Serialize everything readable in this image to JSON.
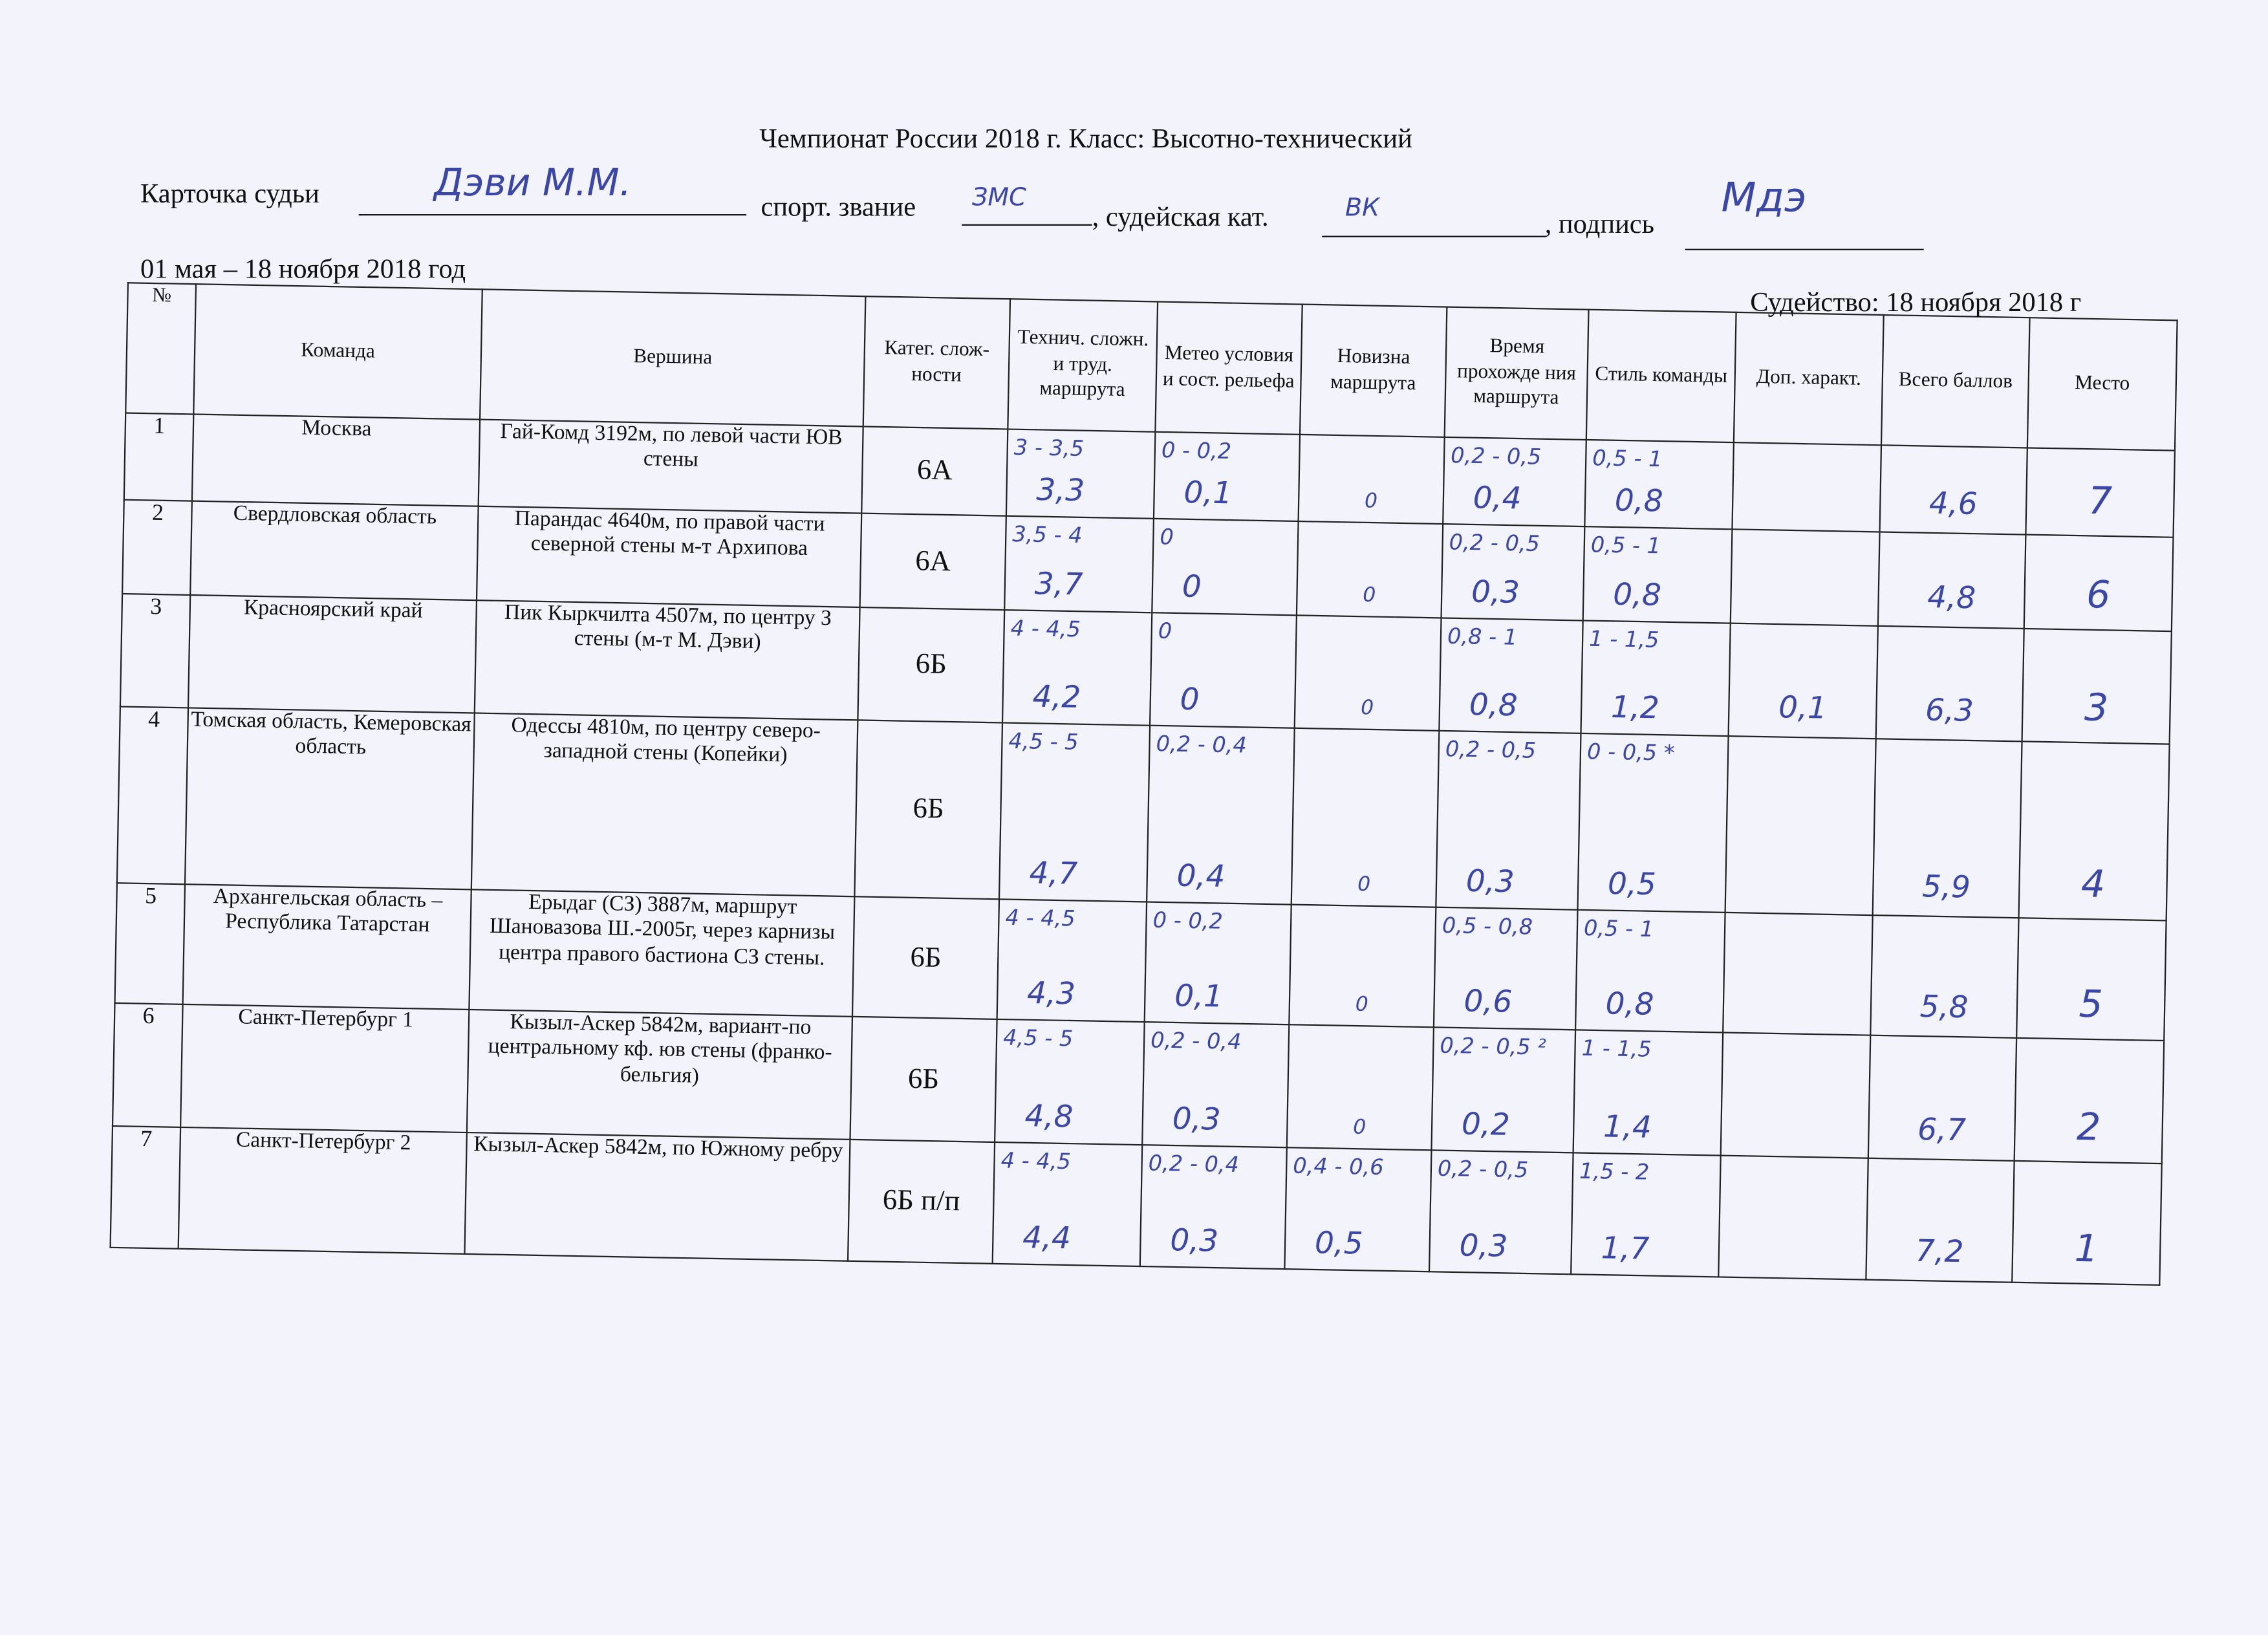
{
  "title": "Чемпионат России 2018 г.  Класс: Высотно-технический",
  "judge": {
    "label": "Карточка судьи",
    "name": "Дэви М.М.",
    "rank_label": "спорт. звание",
    "rank": "ЗМС",
    "category_label": ", судейская кат.",
    "category": "ВК",
    "signature_label": ", подпись",
    "signature": "Мдэ"
  },
  "period": "01 мая – 18 ноября 2018 год",
  "judging_date": "Судейство: 18 ноября 2018 г",
  "headers": [
    "№",
    "Команда",
    "Вершина",
    "Катег. слож-ности",
    "Технич. сложн. и труд. маршрута",
    "Метео условия и сост. рельефа",
    "Новизна маршрута",
    "Время прохожде ния маршрута",
    "Стиль команды",
    "Доп. характ.",
    "Всего баллов",
    "Место"
  ],
  "rows": [
    {
      "n": "1",
      "team": "Москва",
      "peak": "Гай-Комд  3192м, по левой части ЮВ стены",
      "cat": "6А",
      "tech": [
        "3 - 3,5",
        "3,3"
      ],
      "meteo": [
        "0 - 0,2",
        "0,1"
      ],
      "novelty": [
        "",
        "0"
      ],
      "time": [
        "0,2 - 0,5",
        "0,4"
      ],
      "style": [
        "0,5 - 1",
        "0,8"
      ],
      "extra": "",
      "total": "4,6",
      "place": "7"
    },
    {
      "n": "2",
      "team": "Свердловская область",
      "peak": "Парандас 4640м, по правой части северной стены м-т Архипова",
      "cat": "6А",
      "tech": [
        "3,5 - 4",
        "3,7"
      ],
      "meteo": [
        "0",
        "0"
      ],
      "novelty": [
        "",
        "0"
      ],
      "time": [
        "0,2 - 0,5",
        "0,3"
      ],
      "style": [
        "0,5 - 1",
        "0,8"
      ],
      "extra": "",
      "total": "4,8",
      "place": "6"
    },
    {
      "n": "3",
      "team": "Красноярский край",
      "peak": "Пик Кыркчилта   4507м, по центру З стены (м-т М. Дэви)",
      "cat": "6Б",
      "tech": [
        "4 - 4,5",
        "4,2"
      ],
      "meteo": [
        "0",
        "0"
      ],
      "novelty": [
        "",
        "0"
      ],
      "time": [
        "0,8 - 1",
        "0,8"
      ],
      "style": [
        "1 - 1,5",
        "1,2"
      ],
      "extra": "0,1",
      "total": "6,3",
      "place": "3"
    },
    {
      "n": "4",
      "team": "Томская область, Кемеровская область",
      "peak": "Одессы 4810м, по центру северо-западной стены (Копейки)",
      "cat": "6Б",
      "tech": [
        "4,5 - 5",
        "4,7"
      ],
      "meteo": [
        "0,2 - 0,4",
        "0,4"
      ],
      "novelty": [
        "",
        "0"
      ],
      "time": [
        "0,2 - 0,5",
        "0,3"
      ],
      "style": [
        "0 - 0,5 *",
        "0,5"
      ],
      "extra": "",
      "total": "5,9",
      "place": "4"
    },
    {
      "n": "5",
      "team": "Архангельская область – Республика Татарстан",
      "peak": "Ерыдаг (СЗ) 3887м, маршрут Шановазова Ш.-2005г, через карнизы центра правого бастиона СЗ стены.",
      "cat": "6Б",
      "tech": [
        "4 - 4,5",
        "4,3"
      ],
      "meteo": [
        "0 - 0,2",
        "0,1"
      ],
      "novelty": [
        "",
        "0"
      ],
      "time": [
        "0,5 - 0,8",
        "0,6"
      ],
      "style": [
        "0,5 - 1",
        "0,8"
      ],
      "extra": "",
      "total": "5,8",
      "place": "5"
    },
    {
      "n": "6",
      "team": "Санкт-Петербург 1",
      "peak": "Кызыл-Аскер    5842м, вариант-по центральному кф. юв стены (франко-бельгия)",
      "cat": "6Б",
      "tech": [
        "4,5 - 5",
        "4,8"
      ],
      "meteo": [
        "0,2 - 0,4",
        "0,3"
      ],
      "novelty": [
        "",
        "0"
      ],
      "time": [
        "0,2 - 0,5 ²",
        "0,2"
      ],
      "style": [
        "1 - 1,5",
        "1,4"
      ],
      "extra": "",
      "total": "6,7",
      "place": "2"
    },
    {
      "n": "7",
      "team": "Санкт-Петербург 2",
      "peak": "Кызыл-Аскер 5842м, по Южному ребру",
      "cat": "6Б п/п",
      "tech": [
        "4 - 4,5",
        "4,4"
      ],
      "meteo": [
        "0,2 - 0,4",
        "0,3"
      ],
      "novelty": [
        "0,4 - 0,6",
        "0,5"
      ],
      "time": [
        "0,2 - 0,5",
        "0,3"
      ],
      "style": [
        "1,5 - 2",
        "1,7"
      ],
      "extra": "",
      "total": "7,2",
      "place": "1"
    }
  ],
  "colors": {
    "ink": "#3b47a6",
    "paper": "#f3f3fb"
  }
}
